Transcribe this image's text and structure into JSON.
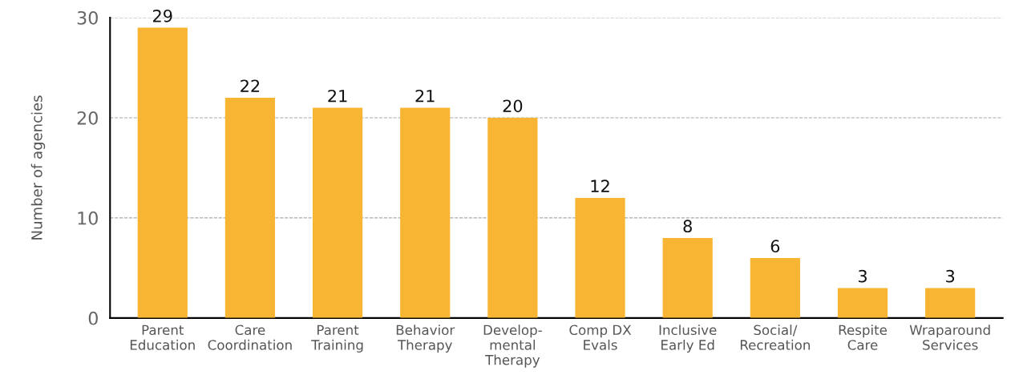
{
  "chart_data": {
    "type": "bar",
    "ylabel": "Number of agencies",
    "categories": [
      "Parent\nEducation",
      "Care\nCoordination",
      "Parent\nTraining",
      "Behavior\nTherapy",
      "Develop-\nmental\nTherapy",
      "Comp DX\nEvals",
      "Inclusive\nEarly Ed",
      "Social/\nRecreation",
      "Respite\nCare",
      "Wraparound\nServices"
    ],
    "values": [
      29,
      22,
      21,
      21,
      20,
      12,
      8,
      6,
      3,
      3
    ],
    "color": "#f8b533",
    "ylim": [
      0,
      30
    ],
    "yticks": [
      0,
      10,
      20,
      30
    ],
    "grid": "y",
    "data_labels": true,
    "legend": false
  }
}
